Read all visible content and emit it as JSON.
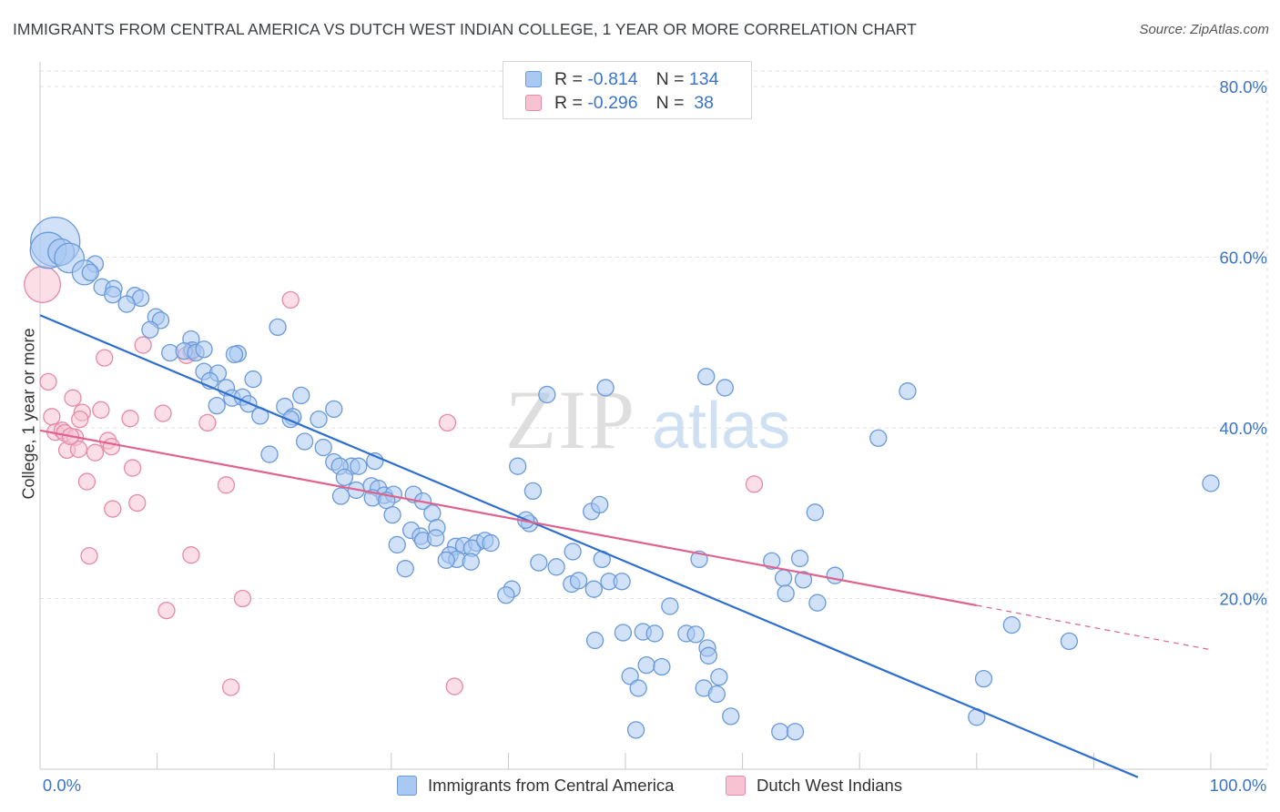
{
  "header": {
    "title": "IMMIGRANTS FROM CENTRAL AMERICA VS DUTCH WEST INDIAN COLLEGE, 1 YEAR OR MORE CORRELATION CHART",
    "source": "Source: ZipAtlas.com"
  },
  "watermark": {
    "zip": "ZIP",
    "atlas": "atlas"
  },
  "legend": {
    "rows": [
      {
        "r_label": "R =",
        "r_value": "-0.814",
        "n_label": "N =",
        "n_value": "134"
      },
      {
        "r_label": "R =",
        "r_value": "-0.296",
        "n_label": "N =",
        "n_value": " 38"
      }
    ]
  },
  "bottom_legend": {
    "series1": "Immigrants from Central America",
    "series2": "Dutch West Indians"
  },
  "colors": {
    "blue_fill": "#a9c8f2",
    "blue_stroke": "#6a9ad9",
    "blue_line": "#2f6fcf",
    "pink_fill": "#f7c3d2",
    "pink_stroke": "#e58aa8",
    "pink_line": "#e0628f",
    "tick_text": "#3b74c8",
    "grid": "#e2e2e2"
  },
  "chart_data": {
    "type": "scatter",
    "title": "IMMIGRANTS FROM CENTRAL AMERICA VS DUTCH WEST INDIAN COLLEGE, 1 YEAR OR MORE CORRELATION CHART",
    "xlabel": "",
    "ylabel": "College, 1 year or more",
    "xlim": [
      0,
      100
    ],
    "ylim": [
      0,
      80
    ],
    "x_tick_labels": [
      "0.0%",
      "100.0%"
    ],
    "y_ticks": [
      20,
      40,
      60,
      80
    ],
    "y_tick_labels": [
      "20.0%",
      "40.0%",
      "60.0%",
      "80.0%"
    ],
    "grid": true,
    "legend_position": "top-center",
    "series": [
      {
        "name": "Immigrants from Central America",
        "r": -0.814,
        "n": 134,
        "trend": {
          "x": [
            0,
            100
          ],
          "y": [
            53.2,
            -1.9
          ]
        },
        "points": [
          [
            1.3,
            61.8,
            3
          ],
          [
            0.7,
            60.8,
            2.2
          ],
          [
            1.8,
            60.6,
            1.6
          ],
          [
            2.5,
            59.9,
            1.8
          ],
          [
            4.7,
            59.2,
            1
          ],
          [
            3.8,
            58.2,
            1.5
          ],
          [
            4.3,
            58.2,
            1
          ],
          [
            5.3,
            56.5,
            1
          ],
          [
            6.3,
            56.3,
            1
          ],
          [
            6.2,
            55.6,
            1
          ],
          [
            8.1,
            55.5,
            1
          ],
          [
            8.6,
            55.2,
            1
          ],
          [
            7.4,
            54.5,
            1
          ],
          [
            9.9,
            53.0,
            1
          ],
          [
            10.3,
            52.6,
            1
          ],
          [
            9.4,
            51.5,
            1
          ],
          [
            20.3,
            51.8,
            1
          ],
          [
            12.9,
            50.4,
            1
          ],
          [
            13.0,
            49.1,
            1
          ],
          [
            11.1,
            48.8,
            1
          ],
          [
            12.3,
            49.0,
            1
          ],
          [
            13.3,
            48.8,
            1
          ],
          [
            14.0,
            49.2,
            1
          ],
          [
            16.9,
            48.7,
            1
          ],
          [
            16.6,
            48.6,
            1
          ],
          [
            14.0,
            46.6,
            1
          ],
          [
            15.2,
            46.4,
            1
          ],
          [
            14.5,
            45.5,
            1
          ],
          [
            18.2,
            45.7,
            1
          ],
          [
            15.9,
            44.7,
            1
          ],
          [
            16.4,
            43.5,
            1
          ],
          [
            17.3,
            43.6,
            1
          ],
          [
            17.8,
            42.8,
            1
          ],
          [
            15.1,
            42.6,
            1
          ],
          [
            22.3,
            43.8,
            1
          ],
          [
            20.9,
            42.5,
            1
          ],
          [
            21.6,
            41.3,
            1
          ],
          [
            18.8,
            41.4,
            1
          ],
          [
            21.4,
            41.0,
            1
          ],
          [
            23.8,
            41.0,
            1
          ],
          [
            25.1,
            42.2,
            1
          ],
          [
            22.6,
            38.4,
            1
          ],
          [
            24.2,
            37.7,
            1
          ],
          [
            19.6,
            36.9,
            1
          ],
          [
            25.1,
            36.0,
            1
          ],
          [
            26.6,
            35.5,
            1
          ],
          [
            28.6,
            36.1,
            1
          ],
          [
            27.2,
            35.5,
            1
          ],
          [
            25.6,
            35.5,
            1
          ],
          [
            26.0,
            34.2,
            1
          ],
          [
            27.0,
            32.7,
            1
          ],
          [
            28.3,
            33.2,
            1
          ],
          [
            28.9,
            32.9,
            1
          ],
          [
            29.4,
            32.1,
            1
          ],
          [
            30.2,
            32.2,
            1
          ],
          [
            28.4,
            31.8,
            1
          ],
          [
            31.9,
            32.2,
            1
          ],
          [
            25.7,
            32.0,
            1
          ],
          [
            29.6,
            31.5,
            1
          ],
          [
            32.7,
            31.4,
            1
          ],
          [
            30.1,
            29.8,
            1
          ],
          [
            33.5,
            30.0,
            1
          ],
          [
            33.9,
            28.3,
            1
          ],
          [
            31.7,
            28.0,
            1
          ],
          [
            32.5,
            27.3,
            1
          ],
          [
            30.5,
            26.3,
            1
          ],
          [
            32.7,
            26.8,
            1
          ],
          [
            33.8,
            27.1,
            1
          ],
          [
            35.5,
            26.1,
            1
          ],
          [
            36.2,
            26.2,
            1
          ],
          [
            37.3,
            26.5,
            1
          ],
          [
            36.9,
            25.9,
            1
          ],
          [
            38.0,
            26.8,
            1
          ],
          [
            38.5,
            26.5,
            1
          ],
          [
            35.0,
            25.1,
            1
          ],
          [
            35.6,
            24.6,
            1
          ],
          [
            34.7,
            24.5,
            1
          ],
          [
            36.8,
            24.3,
            1
          ],
          [
            31.2,
            23.5,
            1
          ],
          [
            40.8,
            35.5,
            1
          ],
          [
            42.1,
            32.6,
            1
          ],
          [
            41.8,
            28.8,
            1
          ],
          [
            41.5,
            29.2,
            1
          ],
          [
            42.6,
            24.2,
            1
          ],
          [
            44.1,
            23.7,
            1
          ],
          [
            45.4,
            21.7,
            1
          ],
          [
            47.3,
            21.1,
            1
          ],
          [
            47.1,
            30.2,
            1
          ],
          [
            47.8,
            31.0,
            1
          ],
          [
            48.0,
            24.6,
            1
          ],
          [
            40.3,
            21.1,
            1
          ],
          [
            39.8,
            20.4,
            1
          ],
          [
            45.5,
            25.5,
            1
          ],
          [
            46.0,
            22.1,
            1
          ],
          [
            48.6,
            22.0,
            1
          ],
          [
            49.7,
            22.0,
            1
          ],
          [
            47.4,
            15.1,
            1
          ],
          [
            49.8,
            16.0,
            1
          ],
          [
            51.5,
            16.1,
            1
          ],
          [
            52.5,
            15.9,
            1
          ],
          [
            53.8,
            19.1,
            1
          ],
          [
            55.2,
            15.9,
            1
          ],
          [
            56.3,
            24.6,
            1
          ],
          [
            56.0,
            15.8,
            1
          ],
          [
            57.0,
            14.2,
            1
          ],
          [
            57.1,
            13.3,
            1
          ],
          [
            50.4,
            10.9,
            1
          ],
          [
            51.8,
            12.2,
            1
          ],
          [
            51.1,
            9.5,
            1
          ],
          [
            53.1,
            12.0,
            1
          ],
          [
            56.7,
            9.5,
            1
          ],
          [
            58.0,
            10.8,
            1
          ],
          [
            57.8,
            8.8,
            1
          ],
          [
            59.0,
            6.2,
            1
          ],
          [
            50.9,
            4.6,
            1
          ],
          [
            62.5,
            24.4,
            1
          ],
          [
            63.5,
            22.4,
            1
          ],
          [
            64.9,
            24.7,
            1
          ],
          [
            63.7,
            20.6,
            1
          ],
          [
            65.2,
            22.2,
            1
          ],
          [
            66.2,
            30.1,
            1
          ],
          [
            67.9,
            22.7,
            1
          ],
          [
            66.4,
            19.5,
            1
          ],
          [
            71.6,
            38.8,
            1
          ],
          [
            74.1,
            44.3,
            1
          ],
          [
            83.0,
            16.9,
            1
          ],
          [
            80.6,
            10.6,
            1
          ],
          [
            80.0,
            6.1,
            1
          ],
          [
            87.9,
            15.0,
            1
          ],
          [
            100.0,
            33.5,
            1
          ],
          [
            48.3,
            44.7,
            1
          ],
          [
            43.3,
            43.9,
            1
          ],
          [
            56.9,
            46.0,
            1
          ],
          [
            58.5,
            44.7,
            1
          ],
          [
            63.2,
            4.4,
            1
          ],
          [
            64.5,
            4.4,
            1
          ]
        ]
      },
      {
        "name": "Dutch West Indians",
        "r": -0.296,
        "n": 38,
        "trend": {
          "x": [
            0,
            80
          ],
          "y": [
            39.7,
            19.2
          ],
          "dashed_to": {
            "x": 100,
            "y": 14.0
          }
        },
        "points": [
          [
            0.2,
            56.8,
            2.2
          ],
          [
            21.4,
            55.0,
            1
          ],
          [
            8.8,
            49.7,
            1
          ],
          [
            12.9,
            48.9,
            1
          ],
          [
            5.5,
            48.2,
            1
          ],
          [
            0.7,
            45.4,
            1
          ],
          [
            2.8,
            43.5,
            1
          ],
          [
            5.2,
            42.1,
            1
          ],
          [
            3.6,
            41.8,
            1
          ],
          [
            1.0,
            41.3,
            1
          ],
          [
            7.7,
            41.1,
            1
          ],
          [
            10.5,
            41.7,
            1
          ],
          [
            14.3,
            40.6,
            1
          ],
          [
            34.8,
            40.6,
            1
          ],
          [
            1.3,
            39.5,
            1
          ],
          [
            1.9,
            39.7,
            1
          ],
          [
            2.1,
            39.4,
            1
          ],
          [
            3.0,
            38.9,
            1
          ],
          [
            5.8,
            38.5,
            1
          ],
          [
            6.1,
            37.8,
            1
          ],
          [
            2.3,
            37.4,
            1
          ],
          [
            3.3,
            37.5,
            1
          ],
          [
            4.7,
            37.1,
            1
          ],
          [
            7.9,
            35.3,
            1
          ],
          [
            4.0,
            33.7,
            1
          ],
          [
            15.9,
            33.3,
            1
          ],
          [
            61.0,
            33.4,
            1
          ],
          [
            8.3,
            31.2,
            1
          ],
          [
            6.2,
            30.5,
            1
          ],
          [
            4.2,
            25.0,
            1
          ],
          [
            12.9,
            25.1,
            1
          ],
          [
            17.3,
            20.0,
            1
          ],
          [
            10.8,
            18.6,
            1
          ],
          [
            16.3,
            9.6,
            1
          ],
          [
            35.4,
            9.7,
            1
          ],
          [
            3.4,
            41.0,
            1
          ],
          [
            12.5,
            48.5,
            1
          ],
          [
            2.6,
            39.0,
            1
          ]
        ]
      }
    ]
  }
}
